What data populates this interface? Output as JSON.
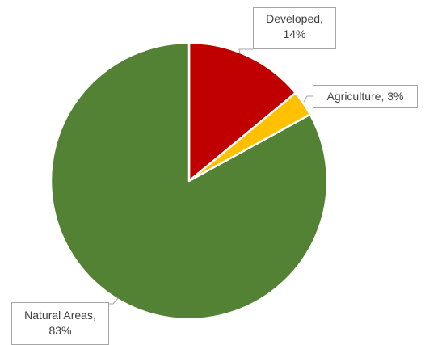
{
  "chart_data": {
    "type": "pie",
    "slices": [
      {
        "label": "Developed",
        "value": 14,
        "value_text": "14%",
        "color": "#c00000"
      },
      {
        "label": "Agriculture",
        "value": 3,
        "value_text": "3%",
        "color": "#ffc000"
      },
      {
        "label": "Natural Areas",
        "value": 83,
        "value_text": "83%",
        "color": "#548235"
      }
    ],
    "start_angle": "12 o'clock",
    "direction": "clockwise",
    "legend": "none",
    "data_labels": "callouts"
  },
  "labels": {
    "developed": {
      "line1": "Developed,",
      "line2": "14%"
    },
    "agriculture": {
      "line1": "Agriculture, 3%"
    },
    "natural": {
      "line1": "Natural Areas,",
      "line2": "83%"
    }
  }
}
